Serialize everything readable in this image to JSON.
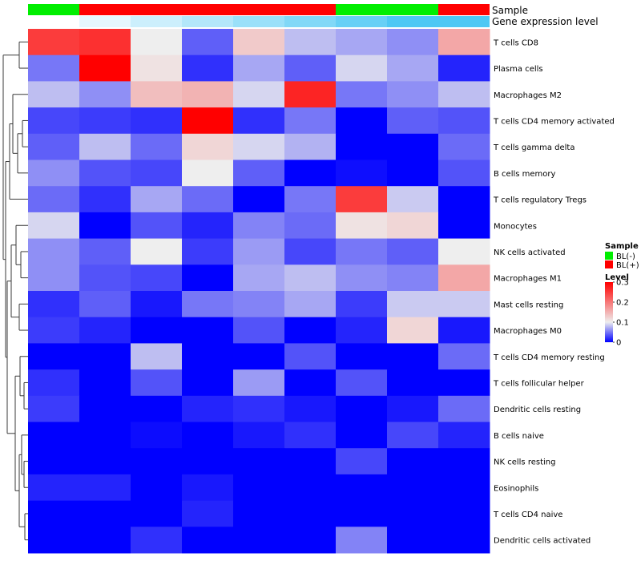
{
  "chart_data": {
    "type": "heatmap",
    "color_scale": {
      "min": 0,
      "max": 0.3,
      "low": "#0000ff",
      "mid": "#eeeeee",
      "high": "#ff0000",
      "mid_value": 0.1
    },
    "annotations": {
      "sample": {
        "label": "Sample",
        "values": [
          "BL(-)",
          "BL(+)",
          "BL(+)",
          "BL(+)",
          "BL(+)",
          "BL(+)",
          "BL(-)",
          "BL(-)",
          "BL(+)"
        ]
      },
      "expression": {
        "label": "Gene expression level",
        "values": [
          0.0,
          1.0,
          2.0,
          3.0,
          4.0,
          5.0,
          6.0,
          7.0,
          7.0
        ]
      }
    },
    "rows": [
      "T cells CD8",
      "Plasma cells",
      "Macrophages M2",
      "T cells CD4 memory activated",
      "T cells gamma delta",
      "B cells memory",
      "T cells regulatory  Tregs",
      "Monocytes",
      "NK cells activated",
      "Macrophages M1",
      "Mast cells resting",
      "Macrophages M0",
      "T cells CD4 memory resting",
      "T cells follicular helper",
      "Dendritic cells resting",
      "B cells naive",
      "NK cells resting",
      "Eosinophils",
      "T cells CD4 naive",
      "Dendritic cells activated"
    ],
    "values": [
      [
        0.25,
        0.26,
        0.1,
        0.04,
        0.13,
        0.08,
        0.07,
        0.06,
        0.16
      ],
      [
        0.05,
        0.3,
        0.11,
        0.02,
        0.07,
        0.04,
        0.09,
        0.07,
        0.015
      ],
      [
        0.08,
        0.06,
        0.14,
        0.15,
        0.09,
        0.27,
        0.05,
        0.06,
        0.08
      ],
      [
        0.03,
        0.025,
        0.02,
        0.3,
        0.02,
        0.05,
        0.0,
        0.04,
        0.035
      ],
      [
        0.04,
        0.08,
        0.045,
        0.12,
        0.09,
        0.075,
        0.0,
        0.0,
        0.045
      ],
      [
        0.06,
        0.035,
        0.03,
        0.1,
        0.04,
        0.0,
        0.006,
        0.0,
        0.035
      ],
      [
        0.045,
        0.02,
        0.07,
        0.045,
        0.0,
        0.05,
        0.25,
        0.085,
        0.0
      ],
      [
        0.09,
        0.0,
        0.035,
        0.015,
        0.055,
        0.045,
        0.11,
        0.12,
        0.0
      ],
      [
        0.06,
        0.04,
        0.1,
        0.025,
        0.065,
        0.03,
        0.05,
        0.04,
        0.1
      ],
      [
        0.06,
        0.035,
        0.03,
        0.0,
        0.07,
        0.08,
        0.06,
        0.055,
        0.16
      ],
      [
        0.02,
        0.04,
        0.01,
        0.05,
        0.055,
        0.07,
        0.025,
        0.085,
        0.085
      ],
      [
        0.025,
        0.015,
        0.0,
        0.0,
        0.035,
        0.0,
        0.015,
        0.12,
        0.01
      ],
      [
        0.0,
        0.0,
        0.08,
        0.0,
        0.0,
        0.035,
        0.0,
        0.0,
        0.045
      ],
      [
        0.02,
        0.0,
        0.035,
        0.0,
        0.065,
        0.0,
        0.035,
        0.0,
        0.0
      ],
      [
        0.025,
        0.0,
        0.0,
        0.015,
        0.02,
        0.01,
        0.0,
        0.01,
        0.045
      ],
      [
        0.0,
        0.0,
        0.005,
        0.0,
        0.01,
        0.02,
        0.0,
        0.03,
        0.015
      ],
      [
        0.0,
        0.0,
        0.0,
        0.0,
        0.0,
        0.0,
        0.03,
        0.0,
        0.0
      ],
      [
        0.015,
        0.015,
        0.0,
        0.01,
        0.0,
        0.0,
        0.0,
        0.0,
        0.0
      ],
      [
        0.0,
        0.0,
        0.0,
        0.015,
        0.0,
        0.0,
        0.0,
        0.0,
        0.0
      ],
      [
        0.0,
        0.0,
        0.02,
        0.0,
        0.0,
        0.0,
        0.055,
        0.0,
        0.0
      ]
    ],
    "legend": {
      "sample": {
        "title": "Sample",
        "items": [
          {
            "label": "BL(-)",
            "color": "#00ee00"
          },
          {
            "label": "BL(+)",
            "color": "#ff0000"
          }
        ]
      },
      "level": {
        "title": "Level",
        "ticks": [
          {
            "label": "0.3",
            "value": 0.3
          },
          {
            "label": "0.2",
            "value": 0.2
          },
          {
            "label": "0.1",
            "value": 0.1
          },
          {
            "label": "0",
            "value": 0.0
          }
        ]
      }
    },
    "colors": {
      "BL(-)": "#00ee00",
      "BL(+)": "#ff0000",
      "expr_low": "#ffffff",
      "expr_high": "#4ec8f4"
    }
  }
}
